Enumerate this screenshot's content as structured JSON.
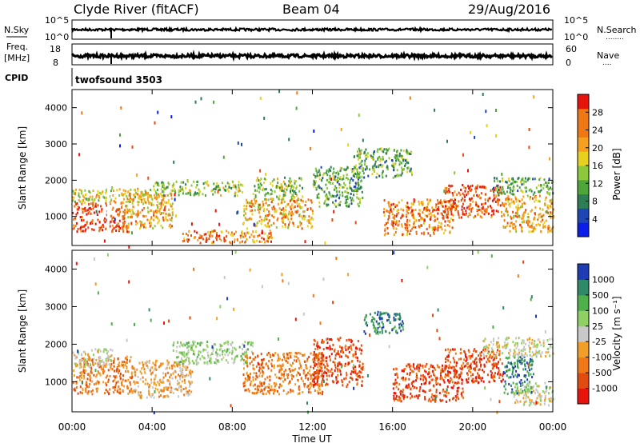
{
  "header": {
    "station": "Clyde River (fitACF)",
    "beam": "Beam 04",
    "date": "29/Aug/2016"
  },
  "sky_panel": {
    "left_label": "N.Sky",
    "left_ticks": [
      "10^5",
      "10^0"
    ],
    "right_ticks": [
      "10^5",
      "10^0"
    ],
    "right_label": "N.Search",
    "right_dots": "........"
  },
  "freq_panel": {
    "left_label_1": "Freq.",
    "left_label_2": "[MHz]",
    "left_ticks": [
      "18",
      "8"
    ],
    "right_ticks": [
      "60",
      "0"
    ],
    "right_label": "Nave",
    "right_dots": "...."
  },
  "cpid": {
    "label": "CPID",
    "program": "twofsound 3503"
  },
  "x_axis": {
    "ticks": [
      "00:00",
      "04:00",
      "08:00",
      "12:00",
      "16:00",
      "20:00",
      "00:00"
    ],
    "label": "Time UT"
  },
  "power_panel": {
    "ylabel": "Slant Range [km]",
    "yticks": [
      "1000",
      "2000",
      "3000",
      "4000"
    ],
    "colorbar_label": "Power [dB]",
    "colorbar_ticks": [
      "4",
      "8",
      "12",
      "16",
      "20",
      "24",
      "28"
    ],
    "colors": [
      "#0a1ee8",
      "#1e46b4",
      "#2d7d55",
      "#4ea63a",
      "#8cc83c",
      "#e6d21e",
      "#f5a01e",
      "#f07814",
      "#e64b0f",
      "#e6140a"
    ]
  },
  "velocity_panel": {
    "ylabel": "Slant Range [km]",
    "yticks": [
      "1000",
      "2000",
      "3000",
      "4000"
    ],
    "colorbar_label": "Velocity [m s⁻¹]",
    "colorbar_ticks": [
      "1000",
      "500",
      "100",
      "25",
      "-25",
      "-100",
      "-500",
      "-1000"
    ],
    "colors": [
      "#1e3cb4",
      "#2f8a6a",
      "#4fb04a",
      "#8fd062",
      "#c8c8c8",
      "#f0a028",
      "#f07818",
      "#e14b0f",
      "#e6140a"
    ]
  },
  "chart_data": [
    {
      "type": "heatmap",
      "name": "power",
      "x_range": [
        "00:00",
        "24:00"
      ],
      "y_range_km": [
        200,
        4500
      ],
      "value_range_db": [
        0,
        32
      ],
      "regions": [
        {
          "t0": 0.0,
          "t1": 2.8,
          "r0": 600,
          "r1": 1400,
          "value": 27
        },
        {
          "t0": 0.0,
          "t1": 4.0,
          "r0": 1400,
          "r1": 1800,
          "value": 17
        },
        {
          "t0": 2.5,
          "t1": 5.0,
          "r0": 700,
          "r1": 1700,
          "value": 22
        },
        {
          "t0": 4.0,
          "t1": 8.5,
          "r0": 1600,
          "r1": 2000,
          "value": 13
        },
        {
          "t0": 5.5,
          "t1": 10.0,
          "r0": 300,
          "r1": 650,
          "value": 25
        },
        {
          "t0": 8.5,
          "t1": 12.0,
          "r0": 700,
          "r1": 1500,
          "value": 21
        },
        {
          "t0": 9.0,
          "t1": 11.5,
          "r0": 1500,
          "r1": 2100,
          "value": 15
        },
        {
          "t0": 12.0,
          "t1": 14.5,
          "r0": 1300,
          "r1": 2400,
          "value": 11
        },
        {
          "t0": 14.0,
          "t1": 17.0,
          "r0": 2100,
          "r1": 2900,
          "value": 9
        },
        {
          "t0": 15.5,
          "t1": 19.0,
          "r0": 500,
          "r1": 1500,
          "value": 24
        },
        {
          "t0": 18.5,
          "t1": 21.5,
          "r0": 1000,
          "r1": 1900,
          "value": 27
        },
        {
          "t0": 21.5,
          "t1": 24.0,
          "r0": 600,
          "r1": 1600,
          "value": 20
        },
        {
          "t0": 21.0,
          "t1": 24.0,
          "r0": 1600,
          "r1": 2100,
          "value": 12
        }
      ]
    },
    {
      "type": "heatmap",
      "name": "velocity",
      "x_range": [
        "00:00",
        "24:00"
      ],
      "y_range_km": [
        200,
        4500
      ],
      "value_range_ms": [
        -1000,
        1000
      ],
      "regions": [
        {
          "t0": 0.0,
          "t1": 3.0,
          "r0": 700,
          "r1": 1700,
          "value": -120
        },
        {
          "t0": 0.0,
          "t1": 2.0,
          "r0": 1400,
          "r1": 1900,
          "value": 0
        },
        {
          "t0": 3.0,
          "t1": 6.0,
          "r0": 600,
          "r1": 1600,
          "value": -90
        },
        {
          "t0": 5.0,
          "t1": 9.0,
          "r0": 1500,
          "r1": 2100,
          "value": 60
        },
        {
          "t0": 8.5,
          "t1": 12.5,
          "r0": 700,
          "r1": 1800,
          "value": -200
        },
        {
          "t0": 12.0,
          "t1": 14.5,
          "r0": 900,
          "r1": 2200,
          "value": -600
        },
        {
          "t0": 14.5,
          "t1": 16.5,
          "r0": 2300,
          "r1": 2900,
          "value": 800
        },
        {
          "t0": 16.0,
          "t1": 19.5,
          "r0": 500,
          "r1": 1500,
          "value": -600
        },
        {
          "t0": 18.5,
          "t1": 21.5,
          "r0": 1000,
          "r1": 1900,
          "value": -700
        },
        {
          "t0": 21.5,
          "t1": 23.0,
          "r0": 700,
          "r1": 1700,
          "value": 900
        },
        {
          "t0": 20.5,
          "t1": 24.0,
          "r0": 1700,
          "r1": 2200,
          "value": 0
        },
        {
          "t0": 22.0,
          "t1": 24.0,
          "r0": 400,
          "r1": 1000,
          "value": 0
        }
      ]
    }
  ]
}
